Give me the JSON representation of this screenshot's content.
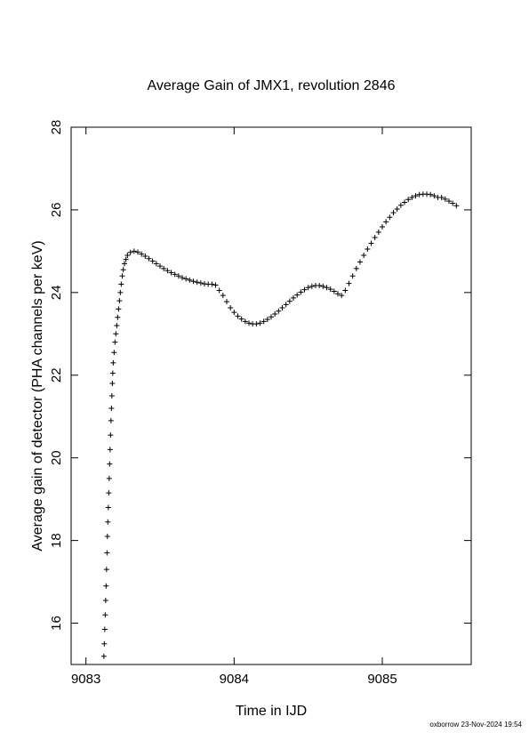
{
  "chart_data": {
    "type": "scatter",
    "title": "Average Gain of JMX1, revolution 2846",
    "x_label": "Time in IJD",
    "y_label": "Average gain of detector (PHA channels per keV)",
    "footer": "oxborrow 23-Nov-2024 19:54",
    "color": "#000000",
    "marker": "plus",
    "xlim": [
      9082.9,
      9085.6
    ],
    "ylim": [
      15,
      28
    ],
    "xticks": [
      9083,
      9084,
      9085
    ],
    "yticks": [
      16,
      18,
      20,
      22,
      24,
      26,
      28
    ],
    "x": [
      9083.121,
      9083.124,
      9083.127,
      9083.13,
      9083.133,
      9083.136,
      9083.139,
      9083.142,
      9083.145,
      9083.148,
      9083.151,
      9083.154,
      9083.157,
      9083.16,
      9083.163,
      9083.166,
      9083.169,
      9083.172,
      9083.175,
      9083.178,
      9083.181,
      9083.184,
      9083.19,
      9083.196,
      9083.202,
      9083.208,
      9083.214,
      9083.22,
      9083.226,
      9083.232,
      9083.238,
      9083.245,
      9083.252,
      9083.26,
      9083.27,
      9083.28,
      9083.3,
      9083.325,
      9083.35,
      9083.375,
      9083.4,
      9083.425,
      9083.45,
      9083.475,
      9083.5,
      9083.525,
      9083.55,
      9083.575,
      9083.6,
      9083.625,
      9083.65,
      9083.675,
      9083.7,
      9083.725,
      9083.75,
      9083.775,
      9083.8,
      9083.825,
      9083.85,
      9083.875,
      9083.9,
      9083.925,
      9083.95,
      9083.975,
      9084.0,
      9084.025,
      9084.05,
      9084.075,
      9084.1,
      9084.125,
      9084.15,
      9084.175,
      9084.2,
      9084.225,
      9084.25,
      9084.275,
      9084.3,
      9084.325,
      9084.35,
      9084.375,
      9084.4,
      9084.425,
      9084.45,
      9084.475,
      9084.5,
      9084.525,
      9084.55,
      9084.575,
      9084.6,
      9084.625,
      9084.65,
      9084.675,
      9084.7,
      9084.725,
      9084.75,
      9084.775,
      9084.8,
      9084.825,
      9084.85,
      9084.875,
      9084.9,
      9084.925,
      9084.95,
      9084.975,
      9085.0,
      9085.025,
      9085.05,
      9085.075,
      9085.1,
      9085.125,
      9085.15,
      9085.175,
      9085.2,
      9085.225,
      9085.25,
      9085.275,
      9085.3,
      9085.325,
      9085.35,
      9085.375,
      9085.4,
      9085.425,
      9085.45,
      9085.475,
      9085.5
    ],
    "values": [
      15.2,
      15.5,
      15.85,
      16.2,
      16.55,
      16.9,
      17.3,
      17.7,
      18.1,
      18.45,
      18.8,
      19.15,
      19.5,
      19.85,
      20.2,
      20.55,
      20.9,
      21.2,
      21.5,
      21.8,
      22.05,
      22.3,
      22.55,
      22.8,
      23.0,
      23.2,
      23.4,
      23.6,
      23.8,
      24.0,
      24.2,
      24.4,
      24.55,
      24.7,
      24.8,
      24.9,
      24.97,
      25.0,
      24.98,
      24.93,
      24.88,
      24.82,
      24.76,
      24.7,
      24.64,
      24.58,
      24.53,
      24.48,
      24.44,
      24.4,
      24.36,
      24.33,
      24.3,
      24.27,
      24.25,
      24.23,
      24.21,
      24.2,
      24.2,
      24.18,
      24.05,
      23.93,
      23.78,
      23.63,
      23.52,
      23.43,
      23.36,
      23.3,
      23.26,
      23.24,
      23.24,
      23.26,
      23.3,
      23.35,
      23.41,
      23.48,
      23.55,
      23.63,
      23.71,
      23.79,
      23.87,
      23.94,
      24.01,
      24.07,
      24.12,
      24.15,
      24.17,
      24.17,
      24.15,
      24.12,
      24.08,
      24.03,
      23.97,
      23.93,
      24.05,
      24.22,
      24.4,
      24.58,
      24.74,
      24.9,
      25.05,
      25.19,
      25.33,
      25.46,
      25.59,
      25.71,
      25.82,
      25.93,
      26.02,
      26.11,
      26.18,
      26.25,
      26.3,
      26.34,
      26.37,
      26.38,
      26.38,
      26.37,
      26.34,
      26.3,
      26.3,
      26.26,
      26.21,
      26.16,
      26.1
    ]
  }
}
